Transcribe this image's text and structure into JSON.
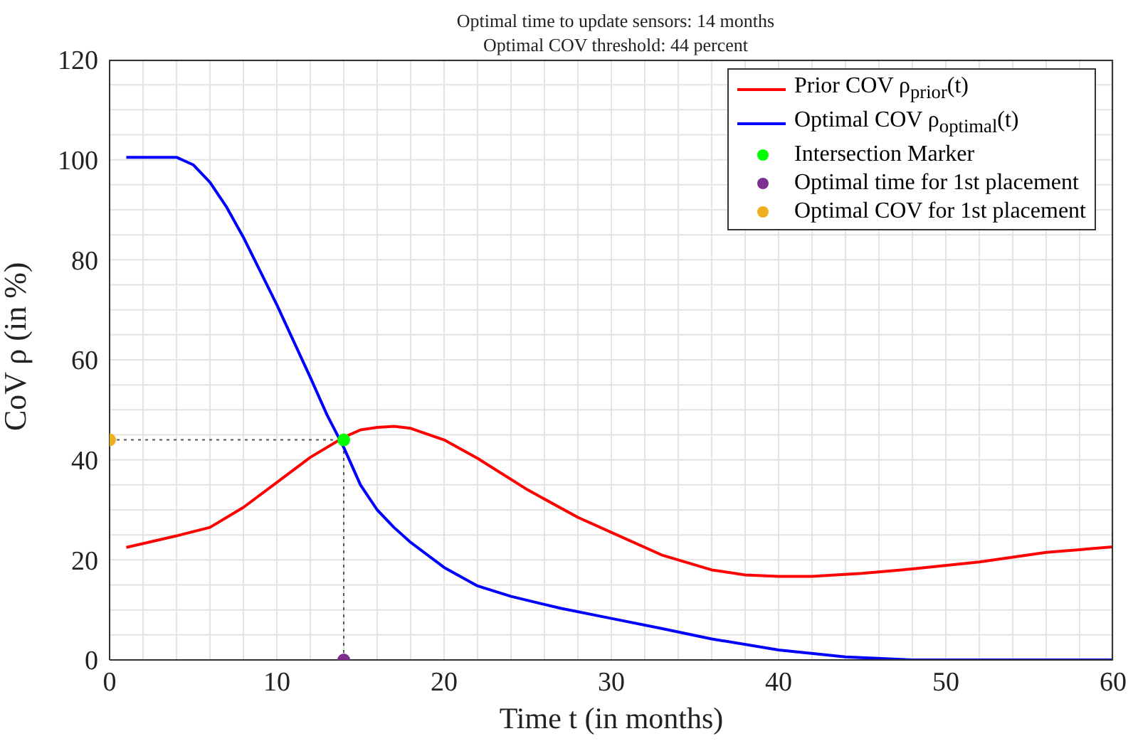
{
  "chart_data": {
    "type": "line",
    "title": "Optimal time to update sensors: 14 months",
    "subtitle": "Optimal COV threshold: 44 percent",
    "xlabel": "Time t (in months)",
    "ylabel": "CoV ρ (in %)",
    "series": [
      {
        "name": "Prior COV ρ$_{prior}$(t)",
        "color": "#ff0000",
        "x": [
          1,
          4,
          6,
          8,
          10,
          12,
          14,
          15,
          16,
          17,
          18,
          20,
          22,
          25,
          28,
          30,
          33,
          36,
          38,
          40,
          42,
          45,
          48,
          52,
          56,
          60
        ],
        "values": [
          22.5,
          24.8,
          26.5,
          30.5,
          35.5,
          40.5,
          44.5,
          46,
          46.5,
          46.7,
          46.3,
          44,
          40.3,
          34,
          28.5,
          25.5,
          21,
          18,
          17,
          16.7,
          16.7,
          17.3,
          18.2,
          19.6,
          21.5,
          22.6
        ]
      },
      {
        "name": "Optimal COV ρ$_{optimal}$(t)",
        "color": "#0000ff",
        "x": [
          1,
          4,
          5,
          6,
          7,
          8,
          10,
          12,
          13,
          14,
          15,
          16,
          17,
          18,
          20,
          22,
          24,
          27,
          30,
          33,
          36,
          40,
          44,
          48,
          60
        ],
        "values": [
          100.5,
          100.5,
          99,
          95.5,
          90.5,
          84.5,
          71,
          56.5,
          49,
          42.5,
          35,
          30,
          26.5,
          23.5,
          18.5,
          14.8,
          12.7,
          10.3,
          8.3,
          6.3,
          4.2,
          2,
          0.6,
          0,
          0
        ]
      },
      {
        "name": "Intersection Marker",
        "type": "scatter",
        "marker": "circle",
        "color": "#00ff00",
        "x": [
          14
        ],
        "values": [
          44
        ]
      },
      {
        "name": "Optimal time for 1st placement",
        "type": "scatter",
        "marker": "circle",
        "color": "#7e2f8e",
        "x": [
          14
        ],
        "values": [
          0
        ]
      },
      {
        "name": "Optimal COV for 1st placement",
        "type": "scatter",
        "marker": "circle",
        "color": "#edb120",
        "x": [
          0
        ],
        "values": [
          44
        ]
      }
    ],
    "ref_lines": [
      {
        "axis": "y",
        "value": 44,
        "color": "#555555",
        "line_style": "dotted"
      },
      {
        "axis": "x",
        "value": 14,
        "color": "#555555",
        "line_style": "dotted"
      }
    ],
    "xlim": [
      0,
      60
    ],
    "xticks": [
      0,
      {
        "value": 2,
        "label": null
      },
      {
        "value": 4,
        "label": null
      },
      {
        "value": 6,
        "label": null
      },
      {
        "value": 8,
        "label": null
      },
      10,
      {
        "value": 12,
        "label": null
      },
      {
        "value": 14,
        "label": null
      },
      {
        "value": 16,
        "label": null
      },
      {
        "value": 18,
        "label": null
      },
      20,
      {
        "value": 22,
        "label": null
      },
      {
        "value": 24,
        "label": null
      },
      {
        "value": 26,
        "label": null
      },
      {
        "value": 28,
        "label": null
      },
      30,
      {
        "value": 32,
        "label": null
      },
      {
        "value": 34,
        "label": null
      },
      {
        "value": 36,
        "label": null
      },
      {
        "value": 38,
        "label": null
      },
      40,
      {
        "value": 42,
        "label": null
      },
      {
        "value": 44,
        "label": null
      },
      {
        "value": 46,
        "label": null
      },
      {
        "value": 48,
        "label": null
      },
      50,
      {
        "value": 52,
        "label": null
      },
      {
        "value": 54,
        "label": null
      },
      {
        "value": 56,
        "label": null
      },
      {
        "value": 58,
        "label": null
      },
      60
    ],
    "ylim": [
      0,
      120
    ],
    "yticks": [
      0,
      {
        "value": 5,
        "label": null
      },
      {
        "value": 10,
        "label": null
      },
      {
        "value": 15,
        "label": null
      },
      20,
      {
        "value": 25,
        "label": null
      },
      {
        "value": 30,
        "label": null
      },
      {
        "value": 35,
        "label": null
      },
      40,
      {
        "value": 45,
        "label": null
      },
      {
        "value": 50,
        "label": null
      },
      {
        "value": 55,
        "label": null
      },
      60,
      {
        "value": 65,
        "label": null
      },
      {
        "value": 70,
        "label": null
      },
      {
        "value": 75,
        "label": null
      },
      80,
      {
        "value": 85,
        "label": null
      },
      {
        "value": 90,
        "label": null
      },
      {
        "value": 95,
        "label": null
      },
      100,
      {
        "value": 105,
        "label": null
      },
      {
        "value": 110,
        "label": null
      },
      {
        "value": 115,
        "label": null
      },
      120
    ],
    "grid": true,
    "legend": "top right",
    "marker": "none",
    "line_style": "solid"
  }
}
